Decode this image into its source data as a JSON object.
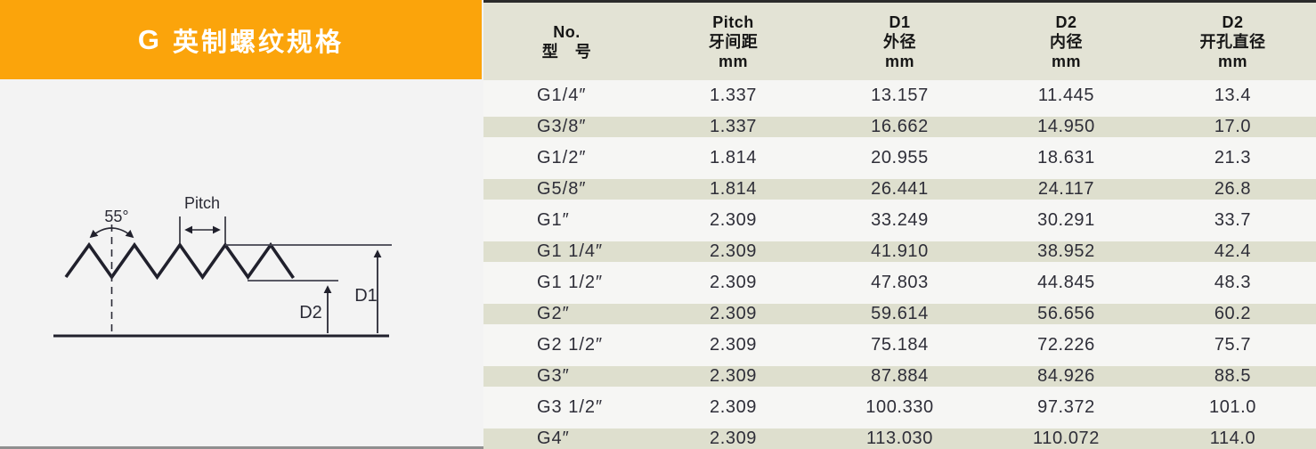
{
  "banner": {
    "letter": "G",
    "title": "英制螺纹规格"
  },
  "diagram": {
    "angle_label": "55°",
    "pitch_label": "Pitch",
    "d1_label": "D1",
    "d2_label": "D2"
  },
  "table": {
    "columns": [
      {
        "lines": [
          "No.",
          "型　号"
        ]
      },
      {
        "lines": [
          "Pitch",
          "牙间距",
          "mm"
        ]
      },
      {
        "lines": [
          "D1",
          "外径",
          "mm"
        ]
      },
      {
        "lines": [
          "D2",
          "内径",
          "mm"
        ]
      },
      {
        "lines": [
          "D2",
          "开孔直径",
          "mm"
        ]
      }
    ],
    "rows": [
      {
        "model": "G1/4″",
        "pitch": "1.337",
        "d1": "13.157",
        "d2": "11.445",
        "bore": "13.4"
      },
      {
        "model": "G3/8″",
        "pitch": "1.337",
        "d1": "16.662",
        "d2": "14.950",
        "bore": "17.0"
      },
      {
        "model": "G1/2″",
        "pitch": "1.814",
        "d1": "20.955",
        "d2": "18.631",
        "bore": "21.3"
      },
      {
        "model": "G5/8″",
        "pitch": "1.814",
        "d1": "26.441",
        "d2": "24.117",
        "bore": "26.8"
      },
      {
        "model": "G1″",
        "pitch": "2.309",
        "d1": "33.249",
        "d2": "30.291",
        "bore": "33.7"
      },
      {
        "model": "G1 1/4″",
        "pitch": "2.309",
        "d1": "41.910",
        "d2": "38.952",
        "bore": "42.4"
      },
      {
        "model": "G1 1/2″",
        "pitch": "2.309",
        "d1": "47.803",
        "d2": "44.845",
        "bore": "48.3"
      },
      {
        "model": "G2″",
        "pitch": "2.309",
        "d1": "59.614",
        "d2": "56.656",
        "bore": "60.2"
      },
      {
        "model": "G2 1/2″",
        "pitch": "2.309",
        "d1": "75.184",
        "d2": "72.226",
        "bore": "75.7"
      },
      {
        "model": "G3″",
        "pitch": "2.309",
        "d1": "87.884",
        "d2": "84.926",
        "bore": "88.5"
      },
      {
        "model": "G3 1/2″",
        "pitch": "2.309",
        "d1": "100.330",
        "d2": "97.372",
        "bore": "101.0"
      },
      {
        "model": "G4″",
        "pitch": "2.309",
        "d1": "113.030",
        "d2": "110.072",
        "bore": "114.0"
      }
    ]
  },
  "colors": {
    "banner_orange": "#FBA40B",
    "header_beige": "#E3E3D5",
    "stripe_beige": "#DEDFCE",
    "row_white": "#F6F6F4",
    "panel_gray": "#F3F3F3",
    "text_dark": "#2E2E38",
    "line_dark": "#20202C"
  }
}
